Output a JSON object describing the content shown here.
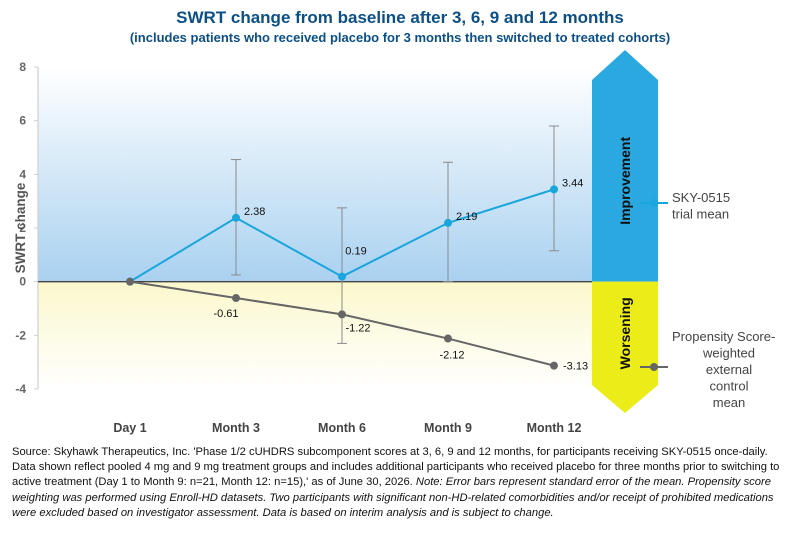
{
  "header": {
    "title": "SWRT change from baseline after 3, 6, 9 and 12 months",
    "subtitle": "(includes patients who received placebo for 3 months then switched to treated cohorts)"
  },
  "chart_data": {
    "type": "line",
    "categories": [
      "Day 1",
      "Month 3",
      "Month 6",
      "Month 9",
      "Month 12"
    ],
    "ylabel": "SWRT change",
    "xlabel": "",
    "ylim": [
      -4,
      8
    ],
    "yticks": [
      -4,
      -2,
      0,
      2,
      4,
      6,
      8
    ],
    "grid": false,
    "legend_position": "right",
    "series": [
      {
        "name": "SKY-0515 trial mean",
        "legend_lines": [
          "SKY-0515",
          "trial mean"
        ],
        "color": "#1aa6dd",
        "values": [
          0,
          2.38,
          0.19,
          2.19,
          3.44
        ],
        "labels": [
          "",
          "2.38",
          "0.19",
          "2.19",
          "3.44"
        ],
        "error_low": [
          null,
          0.25,
          -2.3,
          0.0,
          1.15
        ],
        "error_high": [
          null,
          4.55,
          2.75,
          4.45,
          5.8
        ]
      },
      {
        "name": "Propensity Score-weighted external control mean",
        "legend_lines": [
          "Propensity Score-",
          "weighted",
          "external",
          "control",
          "mean"
        ],
        "color": "#666666",
        "values": [
          0,
          -0.61,
          -1.22,
          -2.12,
          -3.13
        ],
        "labels": [
          "",
          "-0.61",
          "-1.22",
          "-2.12",
          "-3.13"
        ]
      }
    ],
    "bands": [
      {
        "label": "Improvement",
        "range": [
          0,
          8
        ],
        "color": "#2aa8e0",
        "fill_top": "#ffffff",
        "fill_bottom": "#a9d1f0"
      },
      {
        "label": "Worsening",
        "range": [
          -4,
          0
        ],
        "color": "#ecec18",
        "fill_top": "#fbf8cc",
        "fill_bottom": "#ffffff"
      }
    ]
  },
  "source": {
    "text": "Source: Skyhawk Therapeutics, Inc. 'Phase 1/2 cUHDRS subcomponent scores at 3, 6, 9 and 12 months, for participants receiving SKY-0515 once-daily. Data shown reflect pooled 4 mg and 9 mg treatment groups and includes additional participants who received placebo for three months prior to switching to active treatment (Day 1 to Month 9: n=21, Month 12: n=15),' as of June 30, 2026.",
    "note": "Note: Error bars represent standard error of the mean. Propensity score weighting was performed using Enroll-HD datasets. Two participants with significant non-HD-related comorbidities and/or receipt of prohibited medications were excluded based on investigator assessment. Data is based on interim analysis and is subject to change."
  }
}
